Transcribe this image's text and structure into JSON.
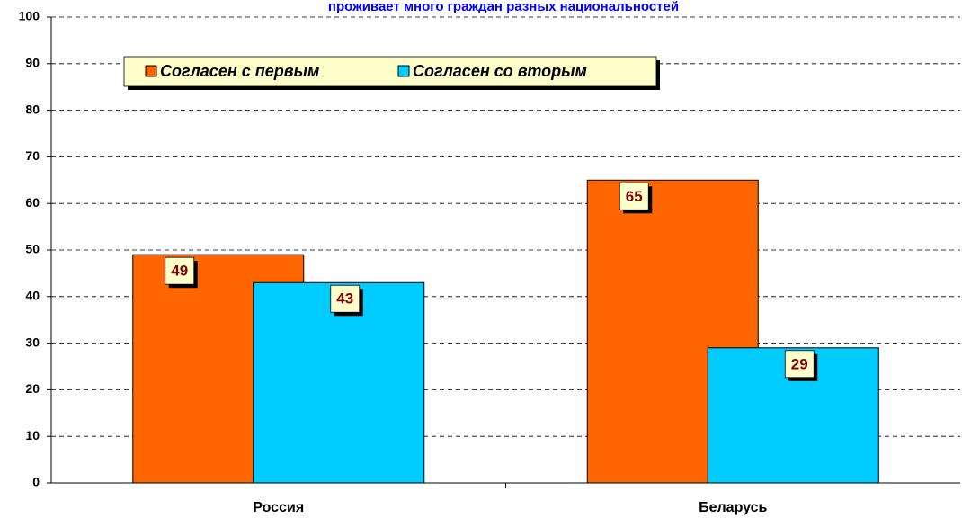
{
  "chart_data": {
    "type": "bar",
    "title": "проживает много граждан разных национальностей",
    "categories": [
      "Россия",
      "Беларусь"
    ],
    "series": [
      {
        "name": "Согласен с первым",
        "color": "#ff6600",
        "values": [
          49,
          65
        ]
      },
      {
        "name": "Согласен со вторым",
        "color": "#00ccff",
        "values": [
          43,
          29
        ]
      }
    ],
    "ylim": [
      0,
      100
    ],
    "yticks": [
      0,
      10,
      20,
      30,
      40,
      50,
      60,
      70,
      80,
      90,
      100
    ],
    "grid": true,
    "legend": "top-left"
  }
}
